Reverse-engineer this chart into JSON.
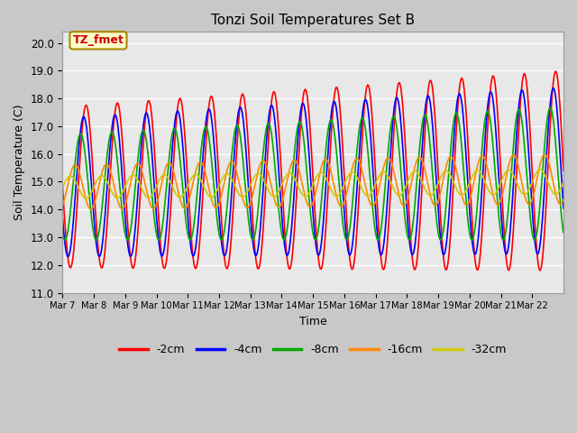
{
  "title": "Tonzi Soil Temperatures Set B",
  "xlabel": "Time",
  "ylabel": "Soil Temperature (C)",
  "annotation": "TZ_fmet",
  "ylim": [
    11.0,
    20.4
  ],
  "yticks": [
    11.0,
    12.0,
    13.0,
    14.0,
    15.0,
    16.0,
    17.0,
    18.0,
    19.0,
    20.0
  ],
  "xtick_labels": [
    "Mar 7",
    "Mar 8",
    "Mar 9",
    "Mar 10",
    "Mar 11",
    "Mar 12",
    "Mar 13",
    "Mar 14",
    "Mar 15",
    "Mar 16",
    "Mar 17",
    "Mar 18",
    "Mar 19",
    "Mar 20",
    "Mar 21",
    "Mar 22"
  ],
  "n_days": 16,
  "colors": {
    "-2cm": "#FF0000",
    "-4cm": "#0000FF",
    "-8cm": "#00AA00",
    "-16cm": "#FF8800",
    "-32cm": "#CCCC00"
  },
  "line_width": 1.2,
  "fig_bg_color": "#C8C8C8",
  "plot_bg_color": "#E8E8E8",
  "grid_color": "#FFFFFF",
  "legend_labels": [
    "-2cm",
    "-4cm",
    "-8cm",
    "-16cm",
    "-32cm"
  ],
  "pts_per_day": 48
}
